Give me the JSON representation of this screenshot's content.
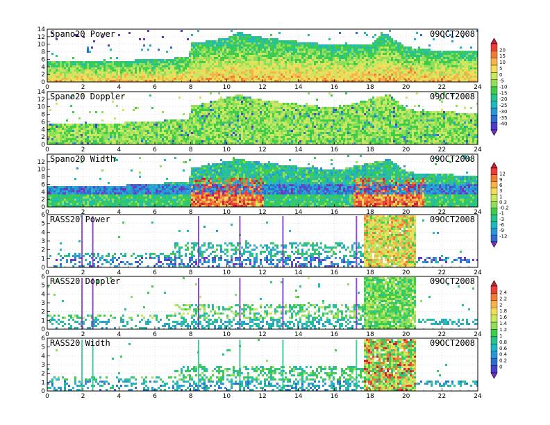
{
  "date_label": "09OCT2008",
  "x_axis": {
    "min": 0,
    "max": 24,
    "ticks": [
      0,
      2,
      4,
      6,
      8,
      10,
      12,
      14,
      16,
      18,
      20,
      22,
      24
    ]
  },
  "panels": [
    {
      "title": "Spano20 Power",
      "ymax": 14,
      "yticks": [
        0,
        2,
        4,
        6,
        8,
        10,
        12,
        14
      ],
      "variable": "power",
      "colorbar": 1
    },
    {
      "title": "Spano20 Doppler",
      "ymax": 14,
      "yticks": [
        0,
        2,
        4,
        6,
        8,
        10,
        12,
        14
      ],
      "variable": "doppler",
      "colorbar": 1
    },
    {
      "title": "Spano20 Width",
      "ymax": 14,
      "yticks": [
        0,
        2,
        4,
        6,
        8,
        10,
        12
      ],
      "variable": "width",
      "colorbar": 2
    },
    {
      "title": "RASS20 Power",
      "ymax": 6,
      "yticks": [
        0,
        1,
        2,
        3,
        4,
        5,
        6
      ],
      "variable": "power",
      "colorbar": 2
    },
    {
      "title": "RASS20 Doppler",
      "ymax": 6,
      "yticks": [
        0,
        1,
        2,
        3,
        4,
        5,
        6
      ],
      "variable": "doppler",
      "colorbar": 3
    },
    {
      "title": "RASS20 Width",
      "ymax": 6,
      "yticks": [
        0,
        1,
        2,
        3,
        4,
        5,
        6
      ],
      "variable": "width",
      "colorbar": 3
    }
  ],
  "colorbars": [
    {
      "labels": [
        "20",
        "15",
        "10",
        "5",
        "0",
        "-5",
        "-10",
        "-15",
        "-20",
        "-25",
        "-30",
        "-35",
        "-40"
      ],
      "colors": [
        "#c71f3c",
        "#e8413a",
        "#f07c36",
        "#f7b34a",
        "#f5dd5c",
        "#c9e75f",
        "#8fdf5b",
        "#3fcc4a",
        "#27c489",
        "#21b8bf",
        "#2a98d6",
        "#2f6cd0",
        "#4a3fc6",
        "#7a2fc0"
      ]
    },
    {
      "labels": [
        "12",
        "9",
        "6",
        "3",
        "1",
        "0.2",
        "-0.2",
        "-1",
        "-3",
        "-6",
        "-9",
        "-12"
      ],
      "colors": [
        "#c71f3c",
        "#e8413a",
        "#f07c36",
        "#f7b34a",
        "#f5dd5c",
        "#c9e75f",
        "#8fdf5b",
        "#3fcc4a",
        "#27c489",
        "#21b8bf",
        "#2a98d6",
        "#2f6cd0",
        "#7a2fc0"
      ]
    },
    {
      "labels": [
        "2.4",
        "2.2",
        "2",
        "1.8",
        "1.6",
        "1.4",
        "1.2",
        "1",
        "0.8",
        "0.6",
        "0.4",
        "0.2",
        "0"
      ],
      "colors": [
        "#c71f3c",
        "#e8413a",
        "#f07c36",
        "#f7b34a",
        "#f5dd5c",
        "#c9e75f",
        "#8fdf5b",
        "#3fcc4a",
        "#27c489",
        "#21b8bf",
        "#2a98d6",
        "#2f6cd0",
        "#4a3fc6",
        "#7a2fc0"
      ]
    }
  ],
  "chart_data": [
    {
      "type": "heatmap",
      "title": "Spano20 Power",
      "xlim": [
        0,
        24
      ],
      "ylim": [
        0,
        14
      ],
      "echo_top_km": [
        [
          0,
          6
        ],
        [
          2,
          6
        ],
        [
          4,
          6
        ],
        [
          6,
          6.2
        ],
        [
          7.8,
          7
        ],
        [
          8,
          10.5
        ],
        [
          10,
          12
        ],
        [
          10.6,
          13.5
        ],
        [
          12,
          12
        ],
        [
          14,
          11
        ],
        [
          16,
          10
        ],
        [
          18,
          10
        ],
        [
          18.6,
          13.5
        ],
        [
          20,
          9.5
        ],
        [
          22,
          8.5
        ],
        [
          24,
          8.5
        ]
      ]
    },
    {
      "type": "heatmap",
      "title": "Spano20 Doppler",
      "xlim": [
        0,
        24
      ],
      "ylim": [
        0,
        14
      ],
      "echo_top_km": [
        [
          0,
          6
        ],
        [
          4,
          6
        ],
        [
          7.8,
          7
        ],
        [
          8,
          10.5
        ],
        [
          10.6,
          13.5
        ],
        [
          12,
          12
        ],
        [
          14,
          11
        ],
        [
          16,
          10
        ],
        [
          19,
          13.5
        ],
        [
          20,
          9.5
        ],
        [
          24,
          8.5
        ]
      ]
    },
    {
      "type": "heatmap",
      "title": "Spano20 Width",
      "xlim": [
        0,
        24
      ],
      "ylim": [
        0,
        14
      ],
      "echo_top_km": [
        [
          0,
          6
        ],
        [
          4,
          6
        ],
        [
          7.8,
          7
        ],
        [
          8,
          10.5
        ],
        [
          10.6,
          13
        ],
        [
          12,
          12
        ],
        [
          14,
          11
        ],
        [
          16,
          10
        ],
        [
          19,
          13
        ],
        [
          20,
          9.5
        ],
        [
          24,
          8.5
        ]
      ]
    },
    {
      "type": "heatmap",
      "title": "RASS20 Power",
      "xlim": [
        0,
        24
      ],
      "ylim": [
        0,
        6
      ],
      "dense_block_hours": [
        17.6,
        20.5
      ]
    },
    {
      "type": "heatmap",
      "title": "RASS20 Doppler",
      "xlim": [
        0,
        24
      ],
      "ylim": [
        0,
        6
      ],
      "dense_block_hours": [
        17.6,
        20.5
      ]
    },
    {
      "type": "heatmap",
      "title": "RASS20 Width",
      "xlim": [
        0,
        24
      ],
      "ylim": [
        0,
        6
      ],
      "dense_block_hours": [
        17.6,
        20.5
      ]
    }
  ]
}
